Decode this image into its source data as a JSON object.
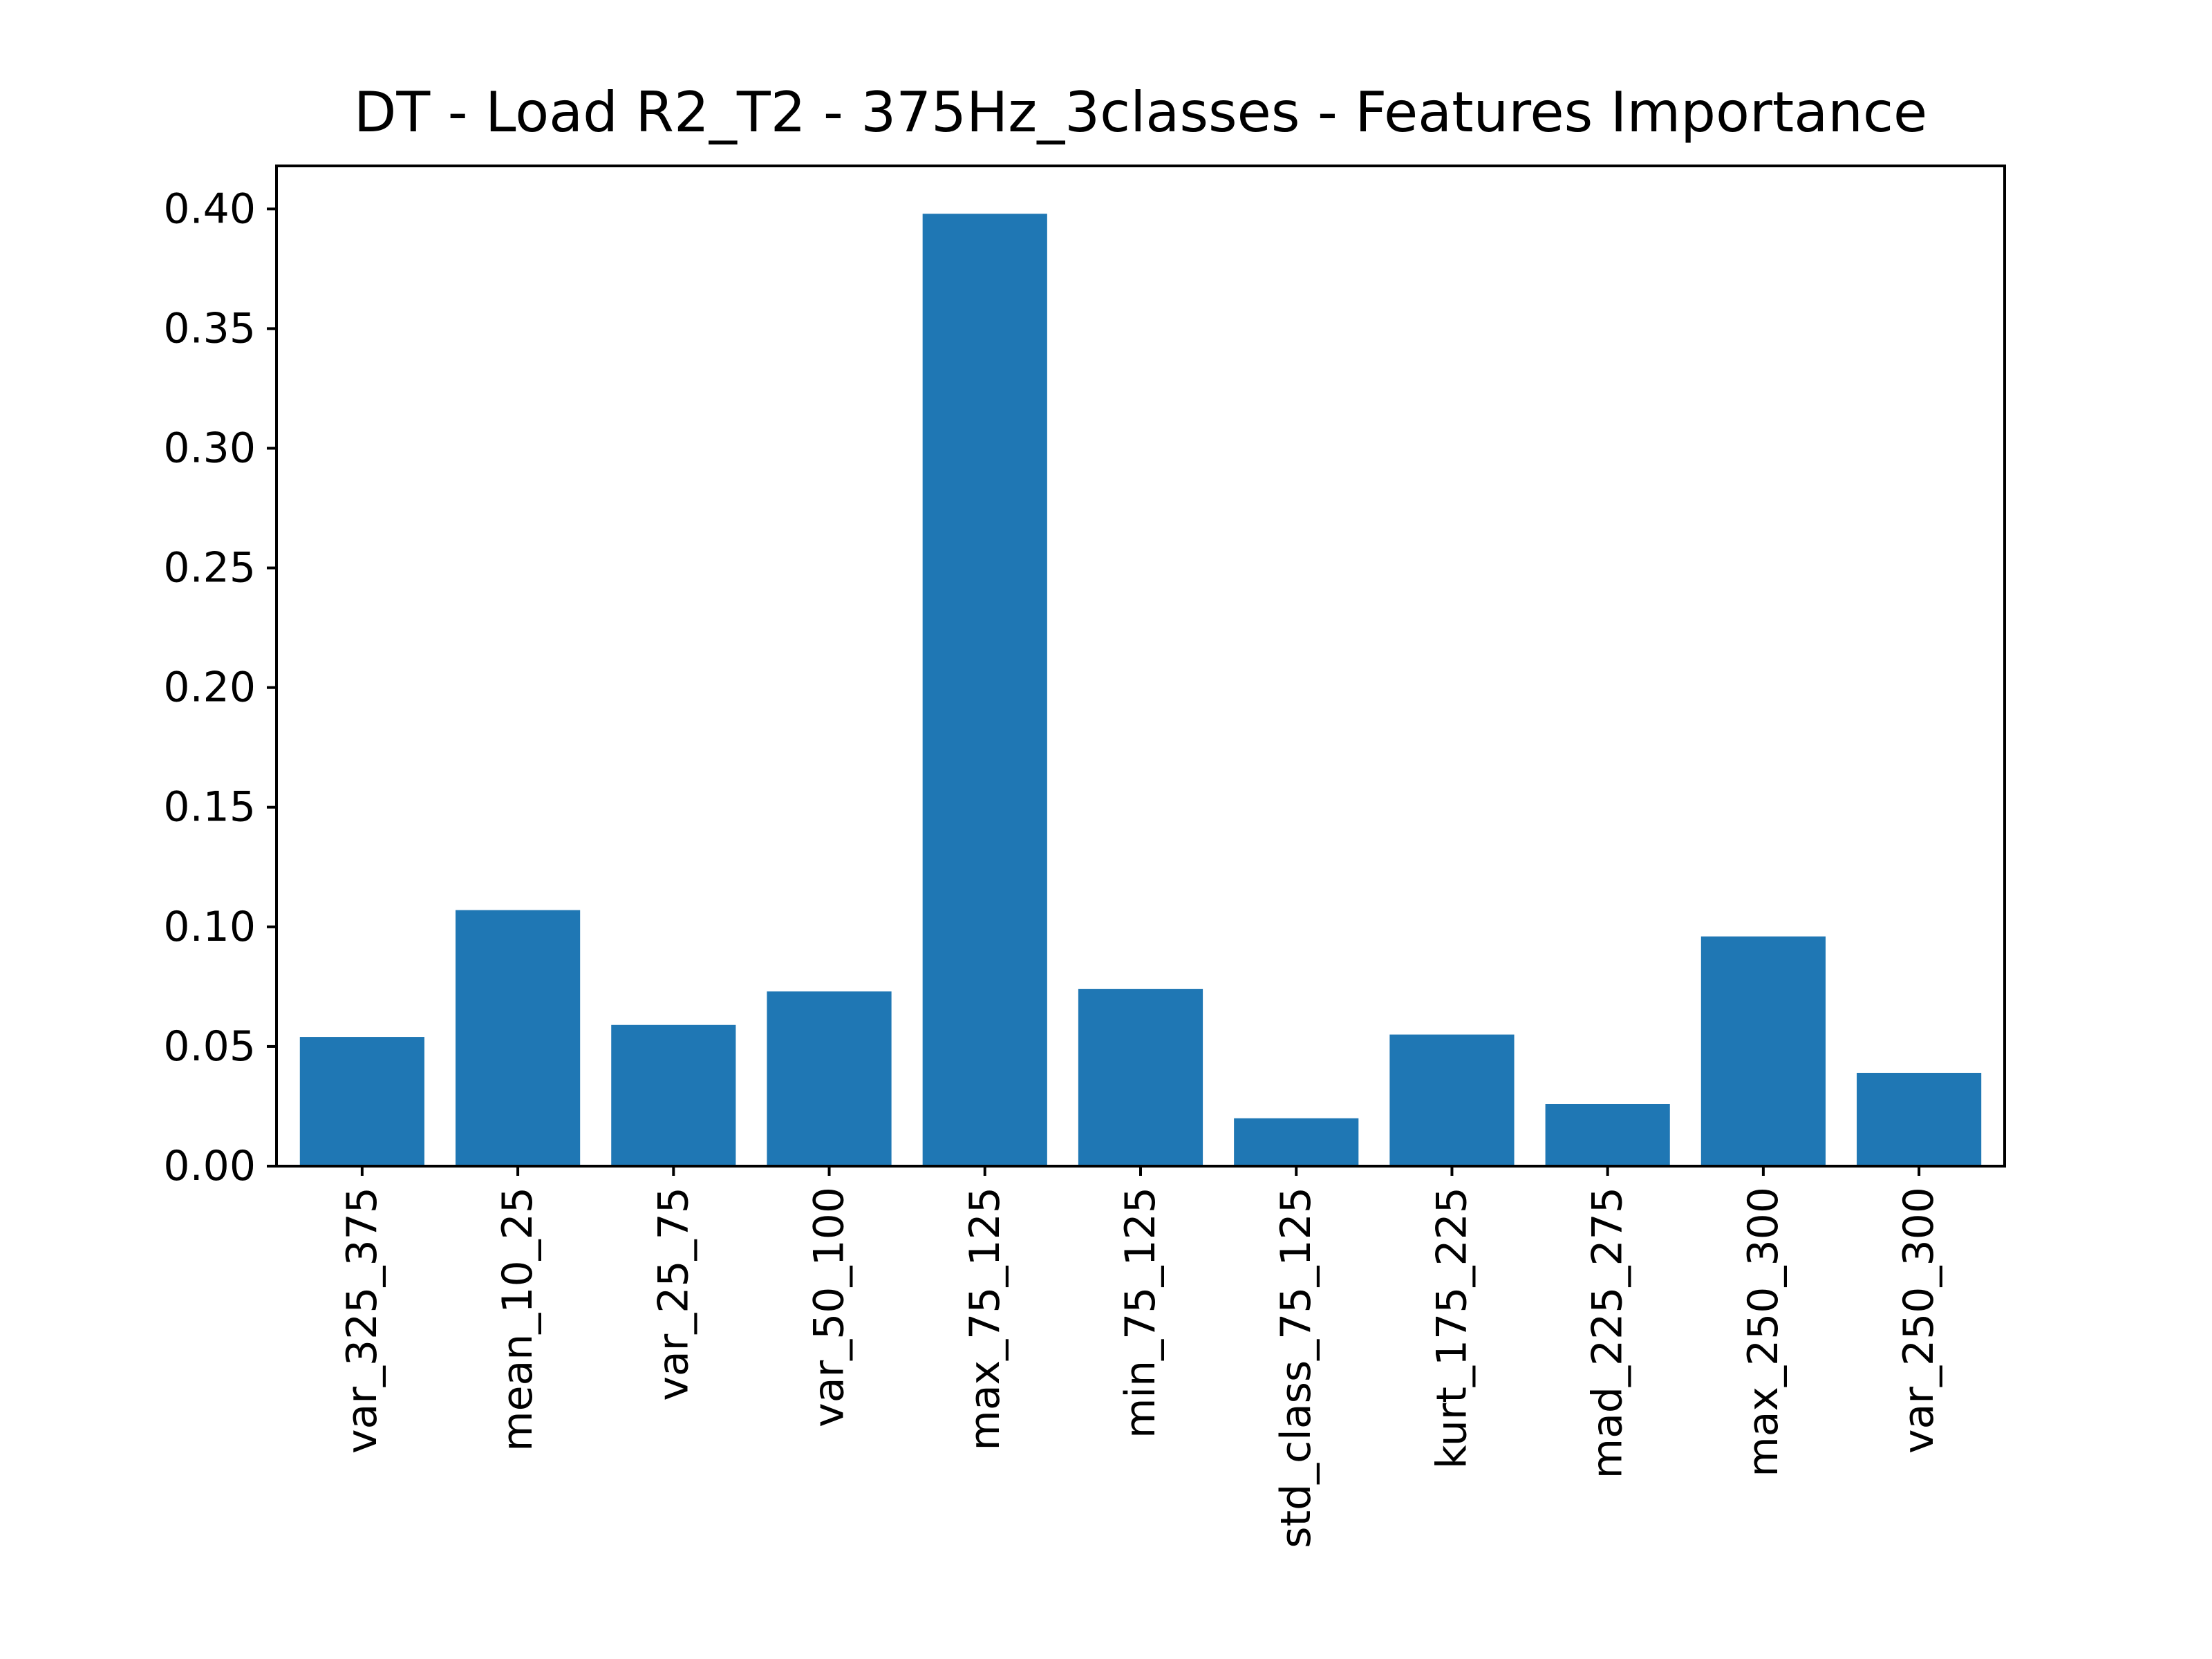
{
  "chart_data": {
    "type": "bar",
    "title": "DT - Load R2_T2 - 375Hz_3classes - Features Importance",
    "xlabel": "",
    "ylabel": "",
    "categories": [
      "var_325_375",
      "mean_10_25",
      "var_25_75",
      "var_50_100",
      "max_75_125",
      "min_75_125",
      "std_class_75_125",
      "kurt_175_225",
      "mad_225_275",
      "max_250_300",
      "var_250_300"
    ],
    "values": [
      0.054,
      0.107,
      0.059,
      0.073,
      0.398,
      0.074,
      0.02,
      0.055,
      0.026,
      0.096,
      0.039
    ],
    "ylim": [
      0,
      0.418
    ],
    "yticks": [
      0.0,
      0.05,
      0.1,
      0.15,
      0.2,
      0.25,
      0.3,
      0.35,
      0.4
    ],
    "ytick_labels": [
      "0.00",
      "0.05",
      "0.10",
      "0.15",
      "0.20",
      "0.25",
      "0.30",
      "0.35",
      "0.40"
    ],
    "bar_color": "#1f77b4",
    "grid": false,
    "legend": "none"
  }
}
